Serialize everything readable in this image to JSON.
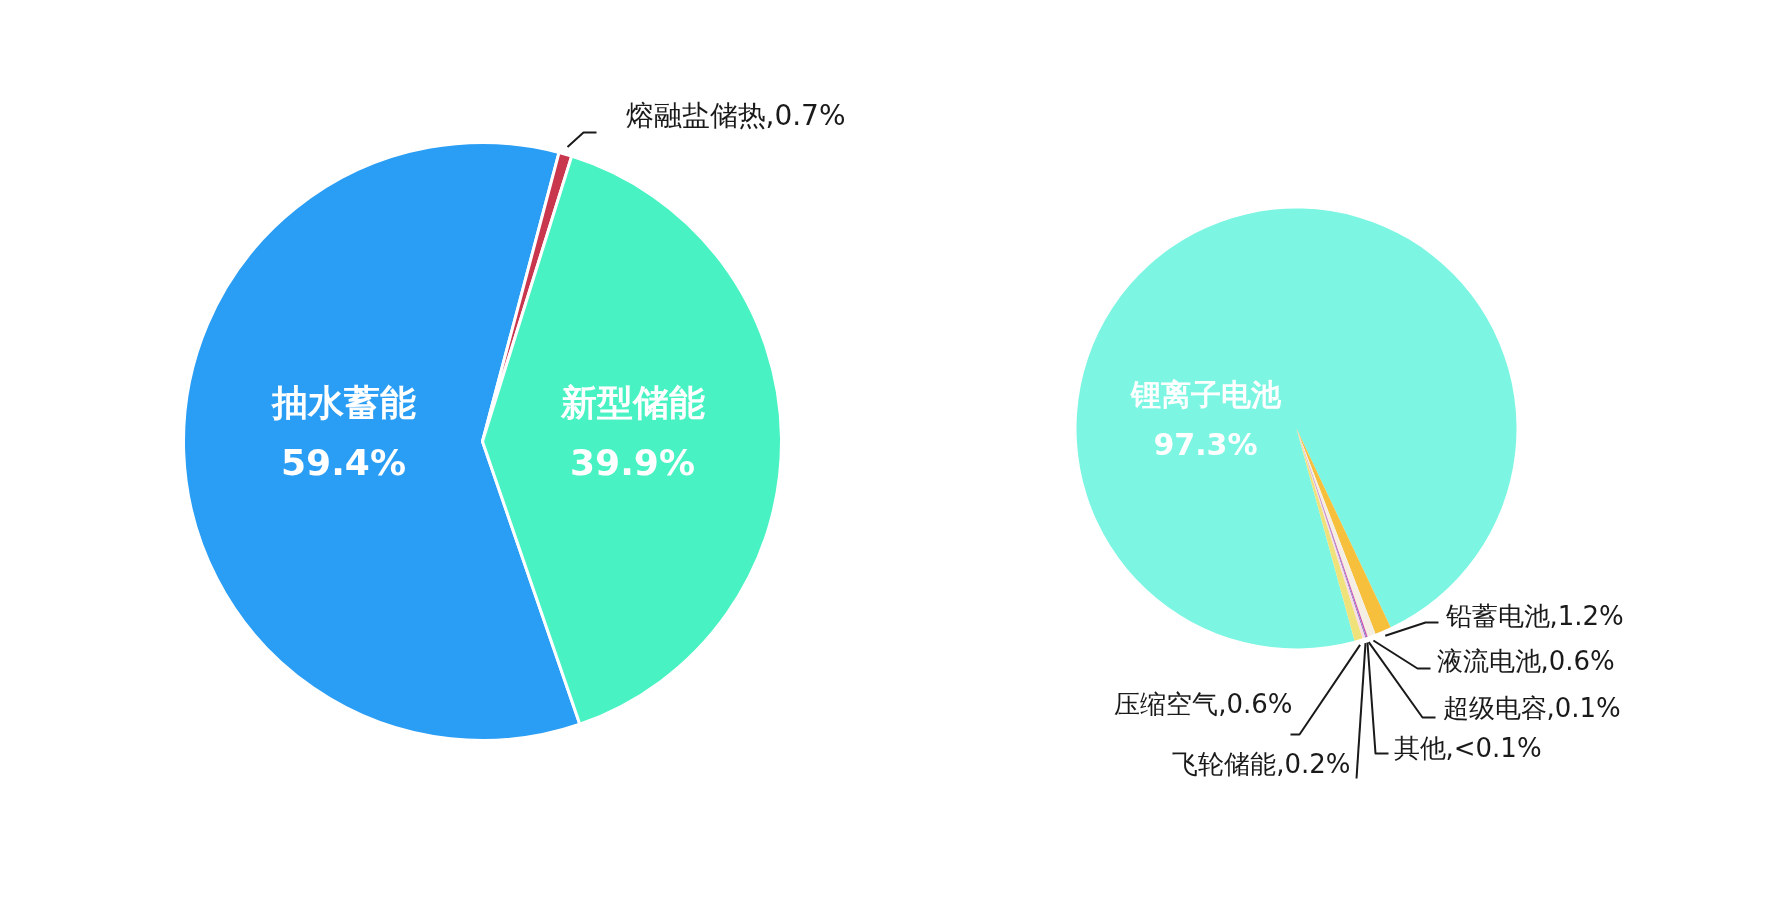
{
  "chart_data": [
    {
      "type": "pie",
      "categories": [
        "抽水蓄能",
        "熔融盐储热",
        "新型储能"
      ],
      "values": [
        59.4,
        0.7,
        39.9
      ],
      "colors": [
        "#2a9df4",
        "#c8374e",
        "#48f2c2"
      ],
      "value_labels": [
        "59.4%",
        "0.7%",
        "39.9%"
      ]
    },
    {
      "type": "pie",
      "categories": [
        "锂离子电池",
        "铅蓄电池",
        "液流电池",
        "超级电容",
        "其他",
        "飞轮储能",
        "压缩空气"
      ],
      "values": [
        97.3,
        1.2,
        0.6,
        0.1,
        0.09,
        0.2,
        0.6
      ],
      "colors": [
        "#7cf5e2",
        "#f6bf3c",
        "#f4efe2",
        "#d050b0",
        "#8a86c8",
        "#f9dbe8",
        "#f0e27a"
      ],
      "value_labels": [
        "97.3%",
        "1.2%",
        "0.6%",
        "0.1%",
        "<0.1%",
        "0.2%",
        "0.6%"
      ]
    }
  ]
}
